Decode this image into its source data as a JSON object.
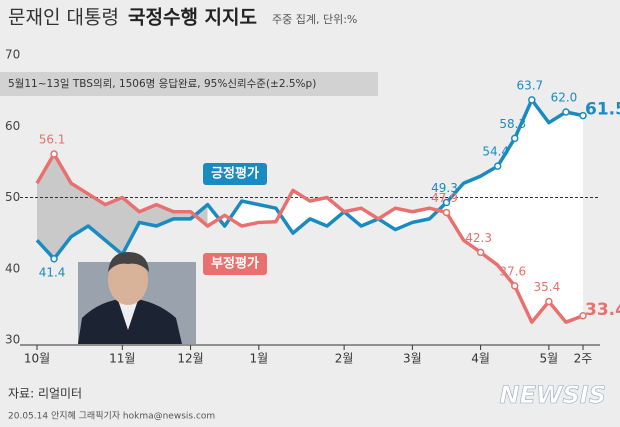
{
  "chart_data": {
    "type": "line",
    "title": [
      "문재인 대통령",
      "국정수행 지지도"
    ],
    "subtitle": "주중 집계, 단위:%",
    "note": "5월11~13일 TBS의뢰, 1506명 응답완료, 95%신뢰수준(±2.5%p)",
    "source": "자료: 리얼미터",
    "credit": "20.05.14 안지혜 그래픽기자 hokma@newsis.com",
    "logo": "NEWSIS",
    "categories": [
      "10월",
      null,
      null,
      null,
      null,
      "11월",
      null,
      null,
      null,
      "12월",
      null,
      null,
      null,
      "1월",
      null,
      null,
      null,
      null,
      "2월",
      null,
      null,
      null,
      "3월",
      null,
      null,
      null,
      "4월",
      null,
      null,
      null,
      "5월",
      null,
      "2주"
    ],
    "series": [
      {
        "name": "긍정평가",
        "color": "#1a8bc0",
        "values": [
          44,
          41.4,
          44.5,
          46,
          44,
          42,
          46.5,
          46,
          47,
          47,
          49,
          46,
          49.5,
          49,
          48.5,
          45,
          47,
          46,
          48,
          46,
          47,
          45.5,
          46.5,
          47,
          49.3,
          52,
          53,
          54.4,
          58.3,
          63.7,
          60.5,
          62.0,
          61.5
        ],
        "value_labels": [
          null,
          "41.4",
          null,
          null,
          null,
          null,
          null,
          null,
          null,
          null,
          null,
          null,
          null,
          null,
          null,
          null,
          null,
          null,
          null,
          null,
          null,
          null,
          null,
          null,
          "49.3",
          null,
          null,
          "54.4",
          "58.3",
          "63.7",
          null,
          "62.0",
          "61.5"
        ]
      },
      {
        "name": "부정평가",
        "color": "#e8716f",
        "values": [
          52,
          56.1,
          52,
          50.5,
          49,
          50,
          48,
          49,
          48,
          48,
          46,
          47.5,
          46,
          46.5,
          46.6,
          51,
          49.5,
          50,
          48,
          48.5,
          47,
          48.5,
          48,
          48.5,
          47.9,
          44,
          42.3,
          40.5,
          37.6,
          32.5,
          35.4,
          32.5,
          33.4
        ],
        "value_labels": [
          null,
          "56.1",
          null,
          null,
          null,
          null,
          null,
          null,
          null,
          null,
          null,
          null,
          null,
          null,
          null,
          null,
          null,
          null,
          null,
          null,
          null,
          null,
          null,
          null,
          "47.9",
          null,
          "42.3",
          null,
          "37.6",
          null,
          "35.4",
          null,
          "33.4"
        ]
      }
    ],
    "ylim": [
      30,
      70
    ],
    "yticks": [
      30,
      40,
      50,
      60,
      70
    ],
    "reference_line": 50
  }
}
